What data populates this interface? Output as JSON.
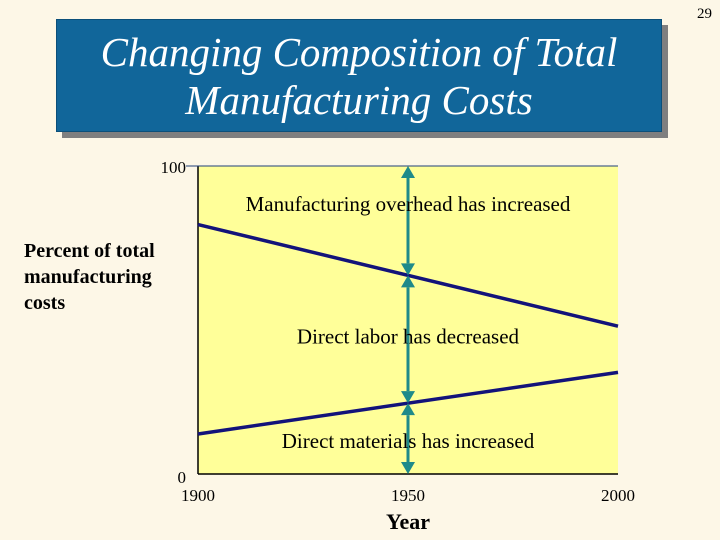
{
  "page_number": "29",
  "title_line1": "Changing Composition of Total",
  "title_line2": "Manufacturing Costs",
  "colors": {
    "title_bg": "#11669a",
    "plot_bg": "#ffff99",
    "line": "#13137a",
    "arrow": "#1f8a8a",
    "page_bg": "#fdf7e7"
  },
  "chart_data": {
    "type": "line",
    "ylabel": [
      "Percent of total",
      "manufacturing",
      "costs"
    ],
    "xlabel": "Year",
    "x_ticks": [
      "1900",
      "1950",
      "2000"
    ],
    "y_ticks": [
      "100",
      "0"
    ],
    "xlim": [
      1900,
      2000
    ],
    "ylim": [
      0,
      100
    ],
    "series": [
      {
        "x": [
          1900,
          2000
        ],
        "y": [
          81,
          48
        ]
      },
      {
        "x": [
          1900,
          2000
        ],
        "y": [
          13,
          33
        ]
      }
    ],
    "annotations": [
      {
        "text": "Manufacturing overhead has increased",
        "x": 1950,
        "y": 87
      },
      {
        "text": "Direct labor has decreased",
        "x": 1950,
        "y": 44
      },
      {
        "text": "Direct materials has increased",
        "x": 1950,
        "y": 10
      }
    ],
    "arrow_x": 1950,
    "grid": false,
    "legend": "none"
  }
}
